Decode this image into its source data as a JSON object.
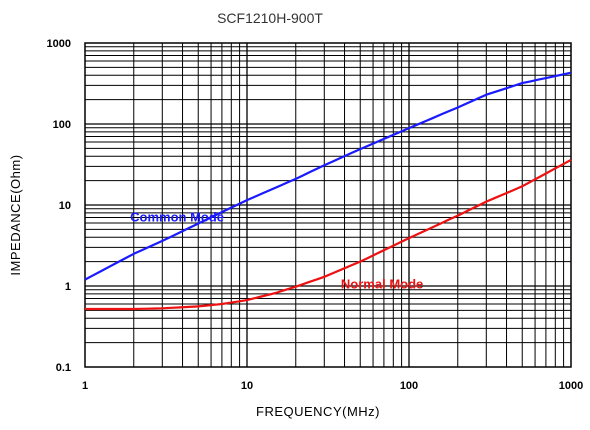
{
  "chart_data": {
    "type": "line",
    "title": "SCF1210H-900T",
    "xlabel": "FREQUENCY(MHz)",
    "ylabel": "IMPEDANCE(Ohm)",
    "xscale": "log",
    "yscale": "log",
    "xlim": [
      1,
      1000
    ],
    "ylim": [
      0.1,
      1000
    ],
    "xticks": [
      "1",
      "10",
      "100",
      "1000"
    ],
    "yticks": [
      "0.1",
      "1",
      "10",
      "100",
      "1000"
    ],
    "grid": true,
    "colors": {
      "common_mode": "#1a1aff",
      "normal_mode": "#ee1111",
      "grid": "#000000"
    },
    "series": [
      {
        "name": "Common Mode",
        "color": "#1a1aff",
        "x": [
          1,
          2,
          3,
          5,
          10,
          20,
          30,
          50,
          100,
          200,
          300,
          500,
          1000
        ],
        "y": [
          1.2,
          2.5,
          3.6,
          5.9,
          11.5,
          21,
          31,
          49,
          89,
          160,
          230,
          320,
          430
        ]
      },
      {
        "name": "Normal Mode",
        "color": "#ee1111",
        "x": [
          1,
          2,
          3,
          5,
          7,
          10,
          15,
          20,
          30,
          50,
          100,
          200,
          300,
          500,
          1000
        ],
        "y": [
          0.52,
          0.52,
          0.53,
          0.56,
          0.6,
          0.67,
          0.82,
          0.98,
          1.3,
          2.0,
          3.9,
          7.4,
          11,
          17,
          36
        ]
      }
    ]
  }
}
